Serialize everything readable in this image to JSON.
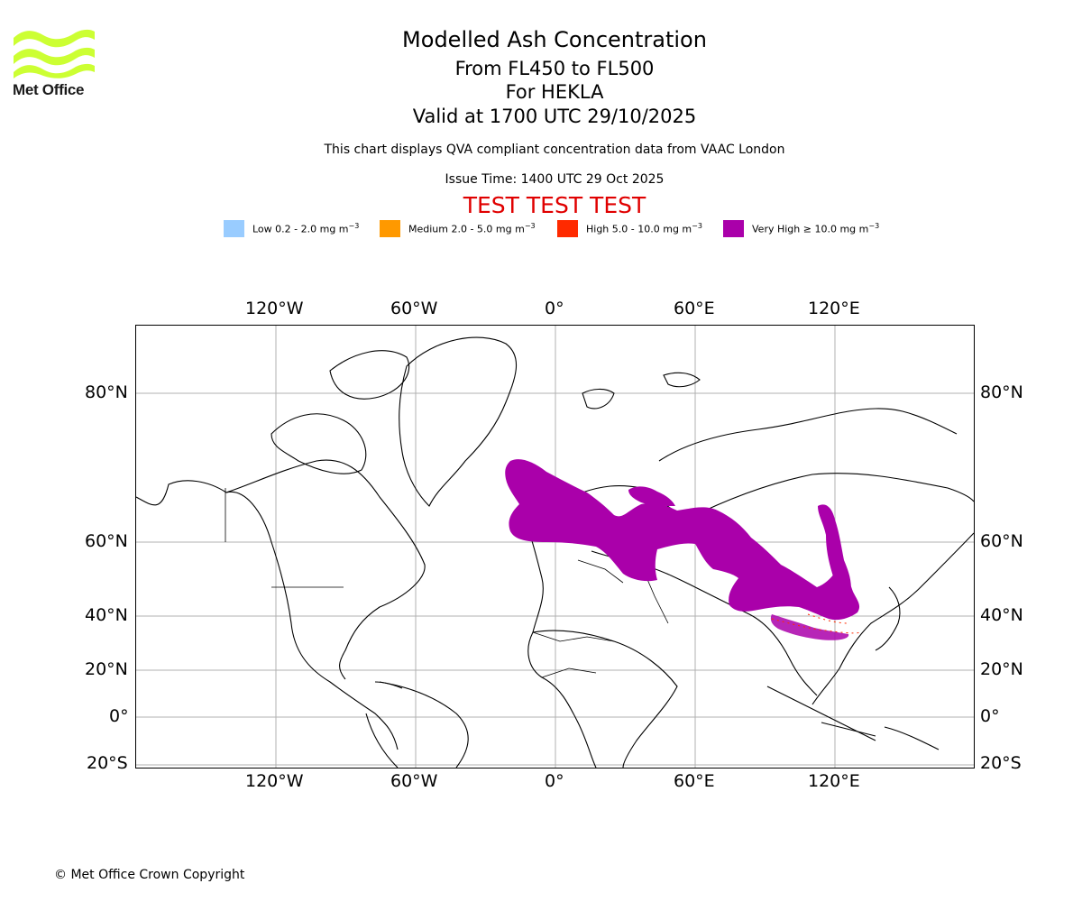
{
  "logo": {
    "text": "Met Office",
    "color": "#ccff33"
  },
  "title": "Modelled Ash Concentration",
  "flight_levels": "From FL450 to FL500",
  "volcano": "For HEKLA",
  "valid_time": "Valid at 1700 UTC 29/10/2025",
  "description": "This chart displays QVA compliant concentration data from VAAC London",
  "issue_time": "Issue Time: 1400 UTC 29 Oct 2025",
  "test_banner": "TEST TEST TEST",
  "legend": [
    {
      "label": "Low 0.2 - 2.0 mg m",
      "exp": "−3",
      "color": "#99ccff"
    },
    {
      "label": "Medium 2.0 - 5.0 mg m",
      "exp": "−3",
      "color": "#ff9900"
    },
    {
      "label": "High 5.0 - 10.0 mg m",
      "exp": "−3",
      "color": "#ff2a00"
    },
    {
      "label": "Very High  ≥  10.0 mg m",
      "exp": "−3",
      "color": "#aa00aa"
    }
  ],
  "axes": {
    "lon_ticks": [
      "120°W",
      "60°W",
      "0°",
      "60°E",
      "120°E"
    ],
    "lat_ticks": [
      "80°N",
      "60°N",
      "40°N",
      "20°N",
      "0°",
      "20°S"
    ]
  },
  "copyright": "© Met Office Crown Copyright"
}
